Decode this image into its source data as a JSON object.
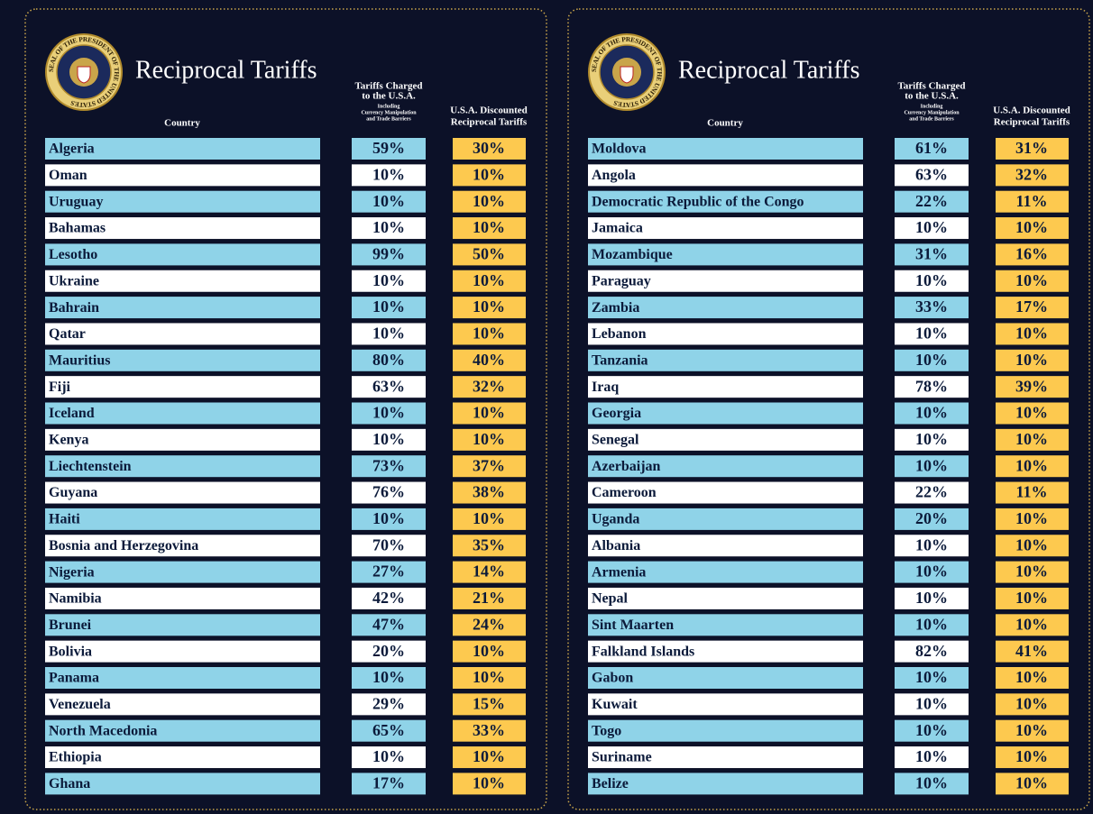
{
  "panels": [
    {
      "seal": "SEAL OF THE PRESIDENT OF THE UNITED STATES",
      "title": "Reciprocal Tariffs",
      "headers": {
        "country": "Country",
        "charged": [
          "Tariffs Charged",
          "to the U.S.A."
        ],
        "charged_sub": [
          "Including",
          "Currency Manipulation",
          "and Trade Barriers"
        ],
        "discounted": [
          "U.S.A. Discounted",
          "Reciprocal Tariffs"
        ]
      },
      "rows": [
        [
          "Algeria",
          "59%",
          "30%"
        ],
        [
          "Oman",
          "10%",
          "10%"
        ],
        [
          "Uruguay",
          "10%",
          "10%"
        ],
        [
          "Bahamas",
          "10%",
          "10%"
        ],
        [
          "Lesotho",
          "99%",
          "50%"
        ],
        [
          "Ukraine",
          "10%",
          "10%"
        ],
        [
          "Bahrain",
          "10%",
          "10%"
        ],
        [
          "Qatar",
          "10%",
          "10%"
        ],
        [
          "Mauritius",
          "80%",
          "40%"
        ],
        [
          "Fiji",
          "63%",
          "32%"
        ],
        [
          "Iceland",
          "10%",
          "10%"
        ],
        [
          "Kenya",
          "10%",
          "10%"
        ],
        [
          "Liechtenstein",
          "73%",
          "37%"
        ],
        [
          "Guyana",
          "76%",
          "38%"
        ],
        [
          "Haiti",
          "10%",
          "10%"
        ],
        [
          "Bosnia and Herzegovina",
          "70%",
          "35%"
        ],
        [
          "Nigeria",
          "27%",
          "14%"
        ],
        [
          "Namibia",
          "42%",
          "21%"
        ],
        [
          "Brunei",
          "47%",
          "24%"
        ],
        [
          "Bolivia",
          "20%",
          "10%"
        ],
        [
          "Panama",
          "10%",
          "10%"
        ],
        [
          "Venezuela",
          "29%",
          "15%"
        ],
        [
          "North Macedonia",
          "65%",
          "33%"
        ],
        [
          "Ethiopia",
          "10%",
          "10%"
        ],
        [
          "Ghana",
          "17%",
          "10%"
        ]
      ]
    },
    {
      "seal": "SEAL OF THE PRESIDENT OF THE UNITED STATES",
      "title": "Reciprocal Tariffs",
      "headers": {
        "country": "Country",
        "charged": [
          "Tariffs Charged",
          "to the U.S.A."
        ],
        "charged_sub": [
          "Including",
          "Currency Manipulation",
          "and Trade Barriers"
        ],
        "discounted": [
          "U.S.A. Discounted",
          "Reciprocal Tariffs"
        ]
      },
      "rows": [
        [
          "Moldova",
          "61%",
          "31%"
        ],
        [
          "Angola",
          "63%",
          "32%"
        ],
        [
          "Democratic Republic of the Congo",
          "22%",
          "11%"
        ],
        [
          "Jamaica",
          "10%",
          "10%"
        ],
        [
          "Mozambique",
          "31%",
          "16%"
        ],
        [
          "Paraguay",
          "10%",
          "10%"
        ],
        [
          "Zambia",
          "33%",
          "17%"
        ],
        [
          "Lebanon",
          "10%",
          "10%"
        ],
        [
          "Tanzania",
          "10%",
          "10%"
        ],
        [
          "Iraq",
          "78%",
          "39%"
        ],
        [
          "Georgia",
          "10%",
          "10%"
        ],
        [
          "Senegal",
          "10%",
          "10%"
        ],
        [
          "Azerbaijan",
          "10%",
          "10%"
        ],
        [
          "Cameroon",
          "22%",
          "11%"
        ],
        [
          "Uganda",
          "20%",
          "10%"
        ],
        [
          "Albania",
          "10%",
          "10%"
        ],
        [
          "Armenia",
          "10%",
          "10%"
        ],
        [
          "Nepal",
          "10%",
          "10%"
        ],
        [
          "Sint Maarten",
          "10%",
          "10%"
        ],
        [
          "Falkland Islands",
          "82%",
          "41%"
        ],
        [
          "Gabon",
          "10%",
          "10%"
        ],
        [
          "Kuwait",
          "10%",
          "10%"
        ],
        [
          "Togo",
          "10%",
          "10%"
        ],
        [
          "Suriname",
          "10%",
          "10%"
        ],
        [
          "Belize",
          "10%",
          "10%"
        ]
      ]
    }
  ]
}
